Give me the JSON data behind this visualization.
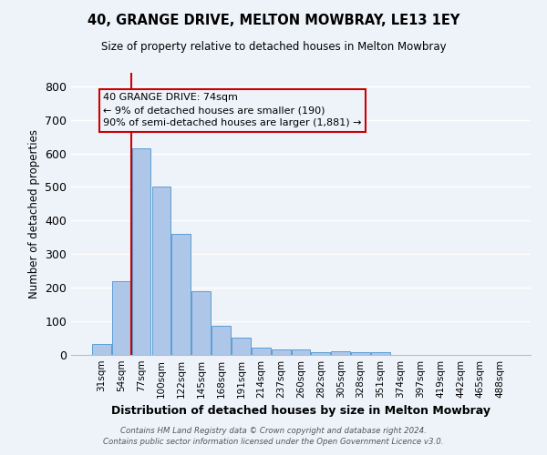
{
  "title": "40, GRANGE DRIVE, MELTON MOWBRAY, LE13 1EY",
  "subtitle": "Size of property relative to detached houses in Melton Mowbray",
  "xlabel": "Distribution of detached houses by size in Melton Mowbray",
  "ylabel": "Number of detached properties",
  "bar_labels": [
    "31sqm",
    "54sqm",
    "77sqm",
    "100sqm",
    "122sqm",
    "145sqm",
    "168sqm",
    "191sqm",
    "214sqm",
    "237sqm",
    "260sqm",
    "282sqm",
    "305sqm",
    "328sqm",
    "351sqm",
    "374sqm",
    "397sqm",
    "419sqm",
    "442sqm",
    "465sqm",
    "488sqm"
  ],
  "bar_values": [
    32,
    220,
    615,
    500,
    360,
    190,
    88,
    52,
    22,
    17,
    16,
    8,
    10,
    9,
    7,
    0,
    0,
    0,
    0,
    0,
    0
  ],
  "bar_color": "#aec6e8",
  "bar_edge_color": "#5a9fd4",
  "ylim": [
    0,
    840
  ],
  "yticks": [
    0,
    100,
    200,
    300,
    400,
    500,
    600,
    700,
    800
  ],
  "vline_x_index": 2,
  "vline_color": "#cc0000",
  "annotation_line1": "40 GRANGE DRIVE: 74sqm",
  "annotation_line2": "← 9% of detached houses are smaller (190)",
  "annotation_line3": "90% of semi-detached houses are larger (1,881) →",
  "bg_color": "#eef3fa",
  "grid_color": "#ffffff",
  "footer_line1": "Contains HM Land Registry data © Crown copyright and database right 2024.",
  "footer_line2": "Contains public sector information licensed under the Open Government Licence v3.0."
}
